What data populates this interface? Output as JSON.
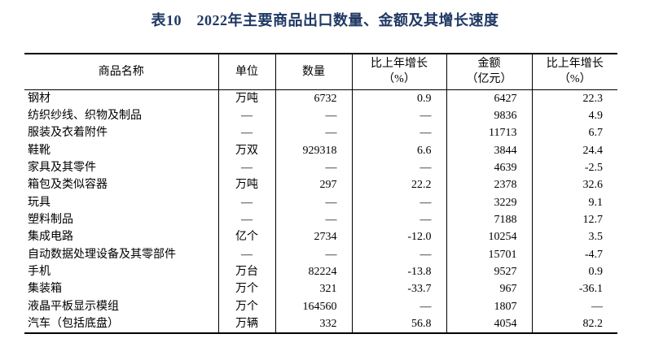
{
  "title": "表10　2022年主要商品出口数量、金额及其增长速度",
  "colors": {
    "title_text": "#1f3864",
    "table_border": "#000000",
    "body_text": "#000000",
    "background": "#ffffff"
  },
  "table": {
    "columns": [
      {
        "key": "commodity",
        "label": "商品名称"
      },
      {
        "key": "unit",
        "label": "单位"
      },
      {
        "key": "quantity",
        "label": "数量"
      },
      {
        "key": "quantity_growth",
        "label": "比上年增长\n（%）"
      },
      {
        "key": "value",
        "label": "金额\n（亿元）"
      },
      {
        "key": "value_growth",
        "label": "比上年增长\n（%）"
      }
    ],
    "rows": [
      [
        "钢材",
        "万吨",
        "6732",
        "0.9",
        "6427",
        "22.3"
      ],
      [
        "纺织纱线、织物及制品",
        "—",
        "—",
        "—",
        "9836",
        "4.9"
      ],
      [
        "服装及衣着附件",
        "—",
        "—",
        "—",
        "11713",
        "6.7"
      ],
      [
        "鞋靴",
        "万双",
        "929318",
        "6.6",
        "3844",
        "24.4"
      ],
      [
        "家具及其零件",
        "—",
        "—",
        "—",
        "4639",
        "-2.5"
      ],
      [
        "箱包及类似容器",
        "万吨",
        "297",
        "22.2",
        "2378",
        "32.6"
      ],
      [
        "玩具",
        "—",
        "—",
        "—",
        "3229",
        "9.1"
      ],
      [
        "塑料制品",
        "—",
        "—",
        "—",
        "7188",
        "12.7"
      ],
      [
        "集成电路",
        "亿个",
        "2734",
        "-12.0",
        "10254",
        "3.5"
      ],
      [
        "自动数据处理设备及其零部件",
        "—",
        "—",
        "—",
        "15701",
        "-4.7"
      ],
      [
        "手机",
        "万台",
        "82224",
        "-13.8",
        "9527",
        "0.9"
      ],
      [
        "集装箱",
        "万个",
        "321",
        "-33.7",
        "967",
        "-36.1"
      ],
      [
        "液晶平板显示模组",
        "万个",
        "164560",
        "—",
        "1807",
        "—"
      ],
      [
        "汽车（包括底盘）",
        "万辆",
        "332",
        "56.8",
        "4054",
        "82.2"
      ]
    ]
  }
}
